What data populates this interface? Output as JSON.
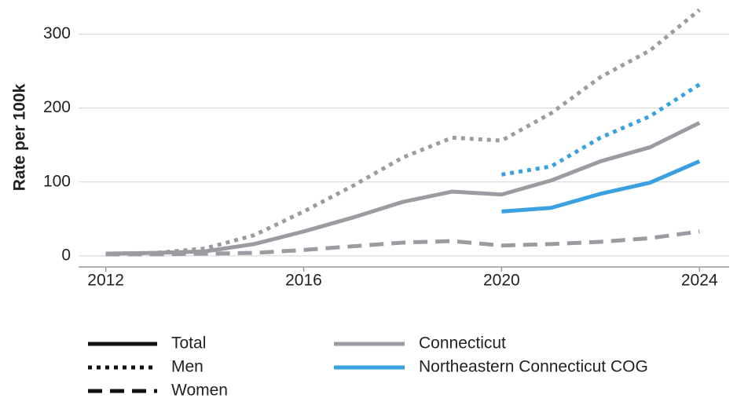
{
  "chart_data": {
    "type": "line",
    "y_label": "Rate per 100k",
    "x": [
      2012,
      2013,
      2014,
      2015,
      2016,
      2017,
      2018,
      2019,
      2020,
      2021,
      2022,
      2023,
      2024
    ],
    "xlim": [
      2011.45,
      2024.6
    ],
    "xticks": [
      2012,
      2016,
      2020,
      2024
    ],
    "ylim": [
      -15,
      341
    ],
    "yticks": [
      0,
      100,
      200,
      300
    ],
    "grid": true,
    "legend": {
      "styles": [
        {
          "name": "Total",
          "dash": "solid"
        },
        {
          "name": "Men",
          "dash": "dotted"
        },
        {
          "name": "Women",
          "dash": "dashed"
        }
      ],
      "regions": [
        {
          "name": "Connecticut",
          "color": "#9a9ca1"
        },
        {
          "name": "Northeastern Connecticut COG",
          "color": "#3aa0e0"
        }
      ]
    },
    "series": [
      {
        "region": "Connecticut",
        "measure": "Total",
        "color": "#9a9ca1",
        "dash": "solid",
        "values": [
          3,
          4,
          6,
          16,
          33,
          52,
          73,
          87,
          83,
          102,
          128,
          147,
          180
        ]
      },
      {
        "region": "Connecticut",
        "measure": "Men",
        "color": "#9a9ca1",
        "dash": "dotted",
        "values": [
          3,
          4,
          10,
          28,
          60,
          95,
          133,
          160,
          156,
          193,
          242,
          278,
          333
        ]
      },
      {
        "region": "Connecticut",
        "measure": "Women",
        "color": "#9a9ca1",
        "dash": "dashed",
        "values": [
          2,
          2,
          3,
          4,
          8,
          13,
          18,
          20,
          14,
          16,
          19,
          24,
          33
        ]
      },
      {
        "region": "Northeastern Connecticut COG",
        "measure": "Total",
        "color": "#3aa0e0",
        "dash": "solid",
        "values": [
          null,
          null,
          null,
          null,
          null,
          null,
          null,
          null,
          60,
          65,
          84,
          99,
          128
        ]
      },
      {
        "region": "Northeastern Connecticut COG",
        "measure": "Men",
        "color": "#3aa0e0",
        "dash": "dotted",
        "values": [
          null,
          null,
          null,
          null,
          null,
          null,
          null,
          null,
          110,
          121,
          160,
          189,
          232
        ]
      }
    ]
  }
}
